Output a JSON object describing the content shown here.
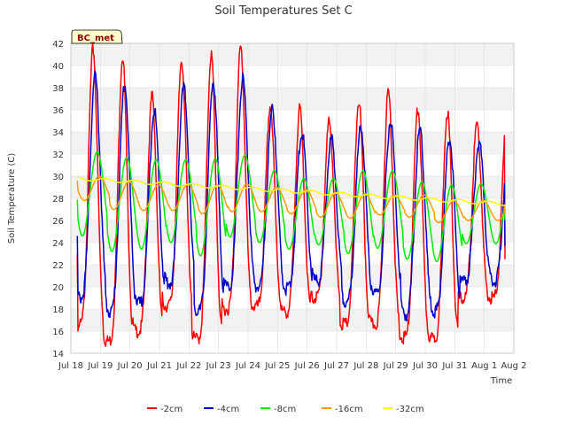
{
  "chart_data": {
    "type": "line",
    "title": "Soil Temperatures Set C",
    "xlabel": "Time",
    "ylabel": "Soil Temperature (C)",
    "site_badge": "BC_met",
    "ylim": [
      14,
      42
    ],
    "yticks": [
      14,
      16,
      18,
      20,
      22,
      24,
      26,
      28,
      30,
      32,
      34,
      36,
      38,
      40,
      42
    ],
    "xlim": [
      0,
      15
    ],
    "xtick_labels": [
      "Jul 18",
      "Jul 19",
      "Jul 20",
      "Jul 21",
      "Jul 22",
      "Jul 23",
      "Jul 24",
      "Jul 25",
      "Jul 26",
      "Jul 27",
      "Jul 28",
      "Jul 29",
      "Jul 30",
      "Jul 31",
      "Aug 1",
      "Aug 2"
    ],
    "grid": true,
    "legend_position": "bottom",
    "series": [
      {
        "name": "-2cm",
        "color": "#ff0000",
        "daily_max": [
          41.5,
          40.8,
          37.2,
          40.5,
          41.0,
          41.6,
          36.3,
          36.0,
          35.0,
          36.8,
          37.6,
          36.0,
          35.8,
          34.7
        ],
        "daily_min": [
          16.5,
          15.1,
          16.0,
          18.3,
          15.3,
          18.0,
          18.2,
          17.7,
          19.0,
          16.6,
          16.6,
          15.4,
          15.3,
          19.0
        ],
        "start": 23.0,
        "end": 22.5
      },
      {
        "name": "-4cm",
        "color": "#0000cc",
        "daily_max": [
          39.0,
          38.3,
          36.0,
          38.0,
          38.5,
          38.8,
          36.0,
          34.0,
          33.3,
          34.5,
          35.0,
          34.2,
          33.5,
          33.0
        ],
        "daily_min": [
          19.0,
          17.8,
          18.5,
          20.3,
          17.8,
          20.0,
          20.0,
          19.8,
          20.5,
          18.7,
          19.3,
          17.5,
          17.8,
          20.5
        ],
        "start": 24.6,
        "end": 23.7
      },
      {
        "name": "-8cm",
        "color": "#00ee00",
        "daily_max": [
          32.2,
          31.7,
          31.5,
          31.5,
          31.6,
          31.9,
          30.5,
          29.8,
          29.8,
          30.5,
          30.5,
          29.5,
          29.2,
          29.3
        ],
        "daily_min": [
          24.6,
          23.2,
          23.4,
          24.0,
          22.8,
          24.5,
          24.0,
          23.4,
          23.8,
          23.0,
          23.5,
          22.5,
          22.3,
          23.9
        ],
        "start": 27.9,
        "end": 26.0
      },
      {
        "name": "-16cm",
        "color": "#ff9900",
        "daily_max": [
          30.0,
          29.5,
          29.2,
          29.3,
          29.2,
          29.3,
          29.0,
          28.8,
          28.5,
          28.4,
          28.3,
          28.3,
          27.8,
          27.8
        ],
        "daily_min": [
          27.8,
          27.0,
          26.9,
          26.9,
          26.6,
          26.8,
          26.8,
          26.6,
          26.3,
          26.2,
          26.5,
          26.3,
          25.8,
          26.0
        ],
        "start": 29.6,
        "end": 27.5
      },
      {
        "name": "-32cm",
        "color": "#ffff00",
        "start": 29.8,
        "end": 27.5,
        "amplitude": 0.15
      }
    ]
  }
}
